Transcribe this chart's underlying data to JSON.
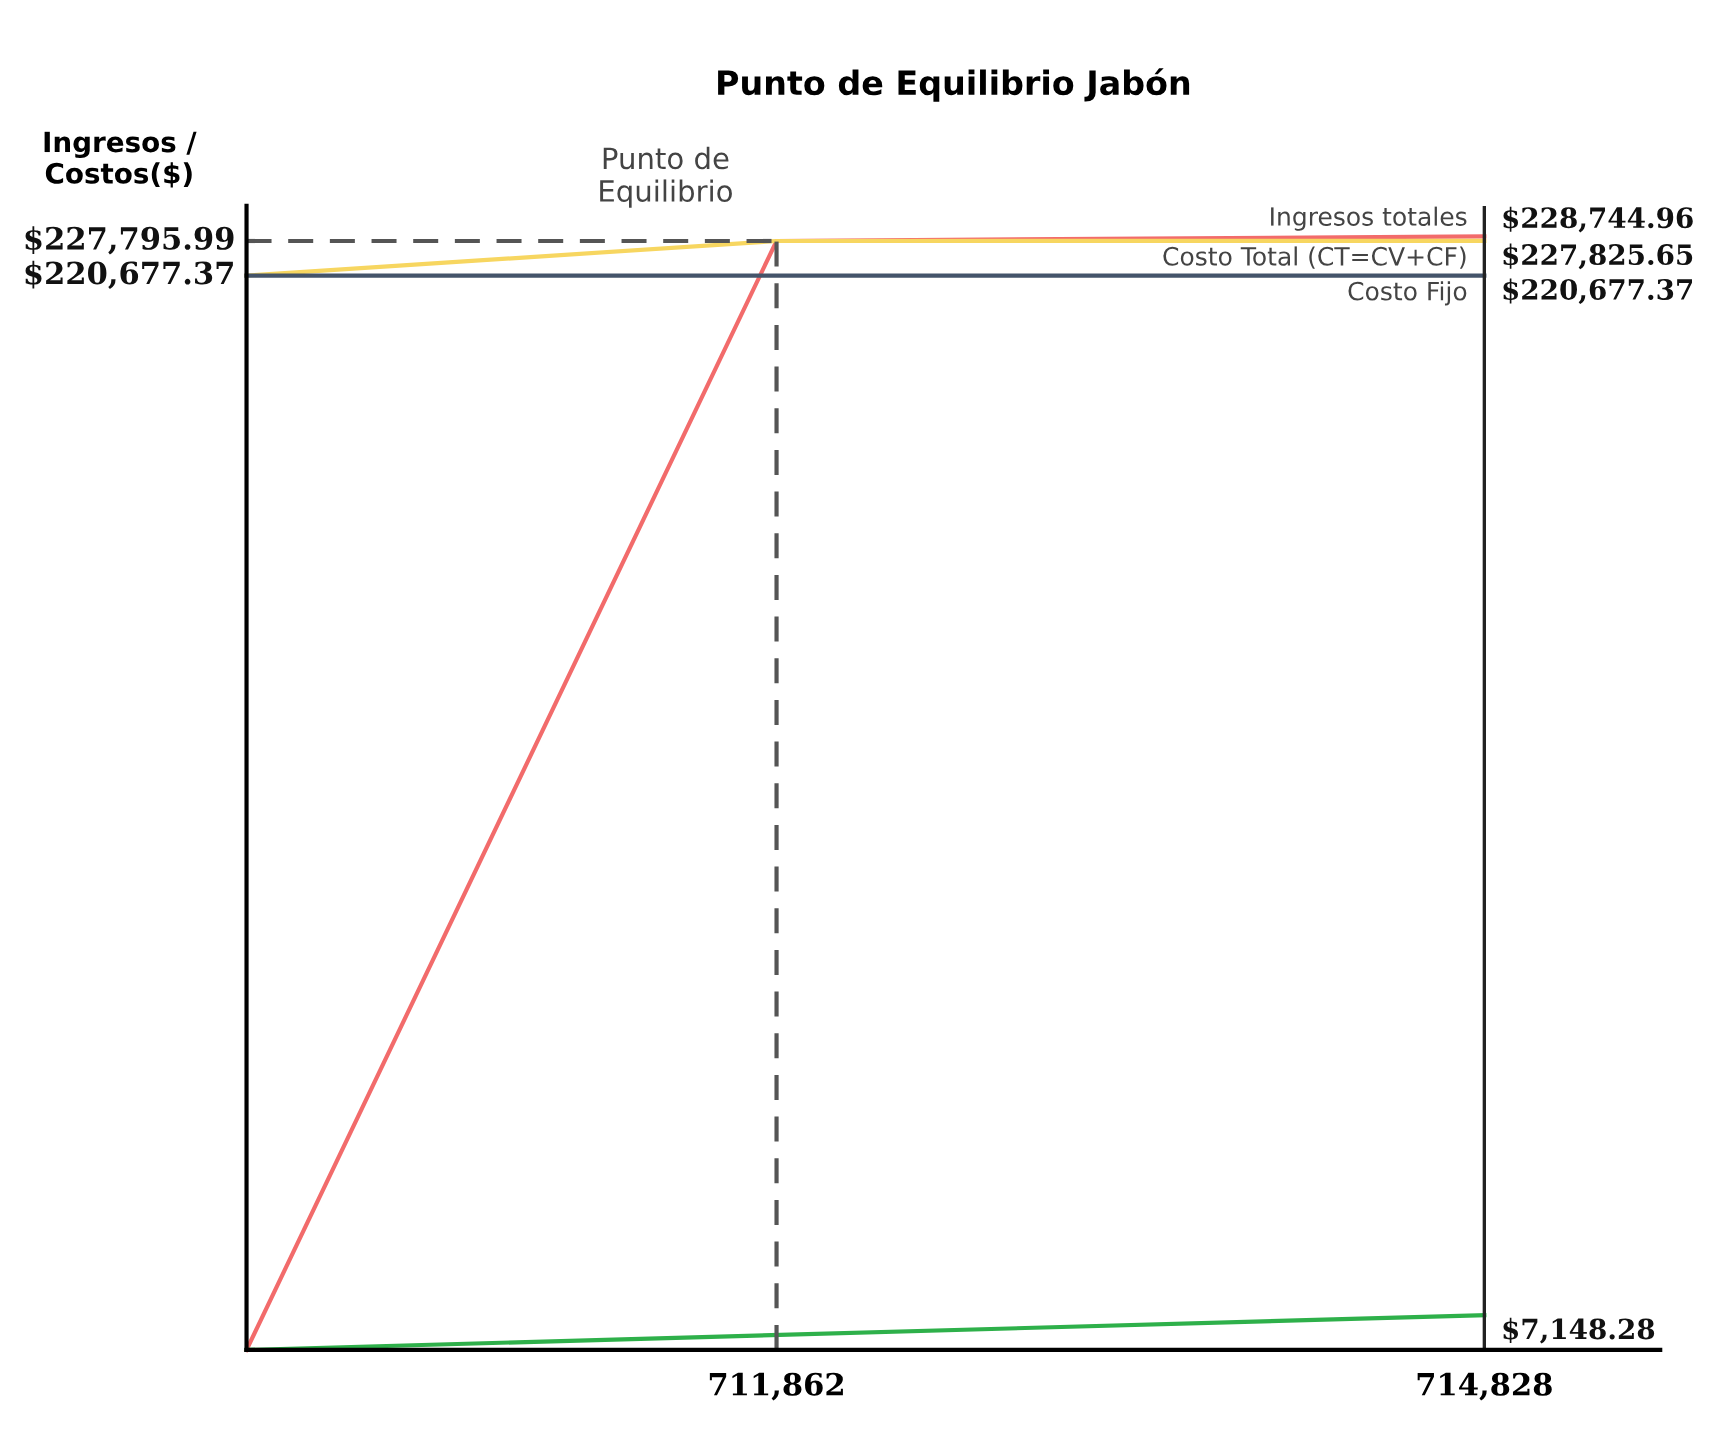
{
  "chart_data": {
    "type": "line",
    "title": "Punto de Equilibrio Jabón",
    "ylabel": "Ingresos /\nCostos($)",
    "xlim": [
      709641,
      715565
    ],
    "xticks": [
      {
        "value": 711862,
        "label": "711,862"
      },
      {
        "value": 714828,
        "label": "714,828"
      }
    ],
    "ylim": [
      0,
      235000
    ],
    "tick_labels": "x",
    "grid": false,
    "legend": false,
    "marker": "none",
    "series": [
      {
        "name": "Ingresos totales",
        "color": "#f26b6b",
        "x": [
          709641,
          711862,
          714828
        ],
        "values": [
          0,
          227795.99,
          228744.96
        ],
        "value_labels": [
          null,
          null,
          "$228,744.96"
        ]
      },
      {
        "name": "Costo Total (CT=CV+CF)",
        "color": "#f7d660",
        "x": [
          709641,
          711862,
          714828
        ],
        "values": [
          220677.37,
          227795.99,
          227825.65
        ],
        "value_labels": [
          null,
          null,
          "$227,825.65"
        ]
      },
      {
        "name": "Costo Fijo",
        "color": "#44546a",
        "x": [
          709641,
          714828
        ],
        "values": [
          220677.37,
          220677.37
        ],
        "value_labels": [
          "$220,677.37",
          "$220,677.37"
        ]
      },
      {
        "color": "#2eb04a",
        "x": [
          709641,
          714828
        ],
        "values": [
          0,
          7148.28
        ],
        "value_labels": [
          null,
          "$7,148.28"
        ]
      },
      {
        "color": "#555555",
        "line_style": "dashed",
        "x": [
          709641,
          711862
        ],
        "values": [
          227795.99,
          227795.99
        ],
        "value_labels": [
          "$227,795.99",
          null
        ]
      },
      {
        "color": "#555555",
        "line_style": "dashed",
        "x": [
          711862,
          711862
        ],
        "values": [
          0,
          227795.99
        ]
      }
    ],
    "ref_lines": [
      {
        "axis": "x",
        "value": 714828,
        "color": "#222222",
        "line_style": "solid"
      }
    ],
    "annotations": [
      {
        "text": "Punto de\nEquilibrio",
        "x": 711862,
        "y": 227795.99
      }
    ]
  }
}
